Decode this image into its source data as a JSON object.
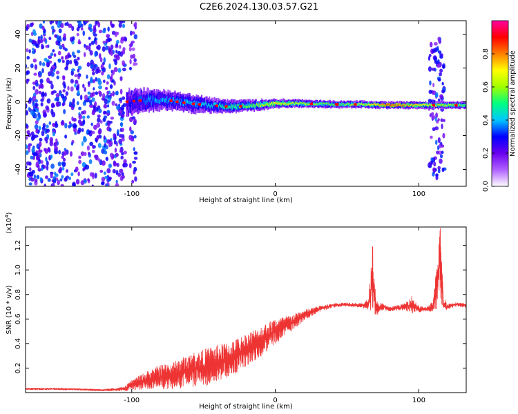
{
  "title": "C2E6.2024.130.03.57.G21",
  "chart_data": [
    {
      "type": "heatmap",
      "xlabel": "Height of straight line (km)",
      "ylabel": "Frequency (Hz)",
      "xlim": [
        -174,
        133
      ],
      "ylim": [
        -50,
        48
      ],
      "x_ticks": [
        "-100",
        "0",
        "100"
      ],
      "x_tick_values": [
        -100,
        0,
        100
      ],
      "y_ticks": [
        "-40",
        "-20",
        "0",
        "20",
        "40"
      ],
      "y_tick_values": [
        -40,
        -20,
        0,
        20,
        40
      ],
      "colorbar": {
        "label": "Normalized spectral amplitude",
        "range": [
          0,
          1
        ],
        "ticks": [
          "0.0",
          "0.2",
          "0.4",
          "0.6",
          "0.8"
        ],
        "tick_values": [
          0.0,
          0.2,
          0.4,
          0.6,
          0.8
        ],
        "colormap": [
          "#ffffff",
          "#b060ff",
          "#6a00f0",
          "#0000ff",
          "#00c8ff",
          "#00ff80",
          "#a0ff00",
          "#ffff00",
          "#ff8000",
          "#ff0000",
          "#ff00a0"
        ]
      },
      "noise_regions": [
        {
          "x_range": [
            -174,
            -104
          ],
          "freq_range": [
            -50,
            48
          ],
          "level": 0.15
        },
        {
          "x_range": [
            -101,
            -97
          ],
          "freq_range": [
            -50,
            48
          ],
          "level": 0.12
        },
        {
          "x_range": [
            107,
            118
          ],
          "freq_range": [
            -45,
            38
          ],
          "level": 0.14
        }
      ],
      "ridge": [
        {
          "x": -104,
          "freq": 0,
          "width": 7,
          "amp": 0.25
        },
        {
          "x": -90,
          "freq": 1,
          "width": 6,
          "amp": 0.35
        },
        {
          "x": -75,
          "freq": 1,
          "width": 5,
          "amp": 0.38
        },
        {
          "x": -60,
          "freq": -1,
          "width": 5,
          "amp": 0.4
        },
        {
          "x": -45,
          "freq": -2,
          "width": 4,
          "amp": 0.42
        },
        {
          "x": -30,
          "freq": -3,
          "width": 3.5,
          "amp": 0.5
        },
        {
          "x": -15,
          "freq": -2,
          "width": 3,
          "amp": 0.55
        },
        {
          "x": 0,
          "freq": -1,
          "width": 2.5,
          "amp": 0.7
        },
        {
          "x": 20,
          "freq": -1,
          "width": 2.2,
          "amp": 0.6
        },
        {
          "x": 40,
          "freq": -1.5,
          "width": 2,
          "amp": 0.55
        },
        {
          "x": 60,
          "freq": -1.5,
          "width": 2,
          "amp": 0.62
        },
        {
          "x": 80,
          "freq": -2,
          "width": 2,
          "amp": 0.85
        },
        {
          "x": 100,
          "freq": -2,
          "width": 2,
          "amp": 0.7
        },
        {
          "x": 133,
          "freq": -2,
          "width": 2,
          "amp": 0.55
        }
      ]
    },
    {
      "type": "line",
      "xlabel": "Height of straight line (km)",
      "ylabel": "SNR (10 * v/v)",
      "y_multiplier": "(x10^4)",
      "xlim": [
        -174,
        133
      ],
      "ylim": [
        0,
        1.35
      ],
      "x_ticks": [
        "-100",
        "0",
        "100"
      ],
      "x_tick_values": [
        -100,
        0,
        100
      ],
      "y_ticks": [
        "0.2",
        "0.4",
        "0.6",
        "0.8",
        "1.0",
        "1.2"
      ],
      "y_tick_values": [
        0.2,
        0.4,
        0.6,
        0.8,
        1.0,
        1.2
      ],
      "color": "#ee3333",
      "series": [
        {
          "x": [
            -174,
            -150,
            -120,
            -105,
            -100,
            -90,
            -80,
            -70,
            -60,
            -50,
            -40,
            -30,
            -20,
            -10,
            0,
            10,
            20,
            30,
            40,
            50,
            60,
            65,
            68,
            70,
            75,
            80,
            90,
            95,
            100,
            105,
            110,
            113,
            115,
            117,
            120,
            125,
            133
          ],
          "y": [
            0.03,
            0.03,
            0.02,
            0.03,
            0.06,
            0.1,
            0.13,
            0.14,
            0.18,
            0.2,
            0.24,
            0.28,
            0.35,
            0.42,
            0.5,
            0.56,
            0.63,
            0.68,
            0.71,
            0.72,
            0.71,
            0.72,
            0.95,
            0.68,
            0.7,
            0.68,
            0.7,
            0.72,
            0.68,
            0.68,
            0.7,
            0.9,
            1.1,
            0.72,
            0.7,
            0.72,
            0.71
          ],
          "noise": [
            0.01,
            0.01,
            0.01,
            0.02,
            0.05,
            0.08,
            0.11,
            0.13,
            0.15,
            0.17,
            0.17,
            0.16,
            0.15,
            0.14,
            0.12,
            0.08,
            0.05,
            0.03,
            0.02,
            0.02,
            0.02,
            0.05,
            0.35,
            0.08,
            0.03,
            0.02,
            0.03,
            0.08,
            0.03,
            0.02,
            0.05,
            0.25,
            0.4,
            0.08,
            0.03,
            0.02,
            0.02
          ]
        }
      ]
    }
  ]
}
